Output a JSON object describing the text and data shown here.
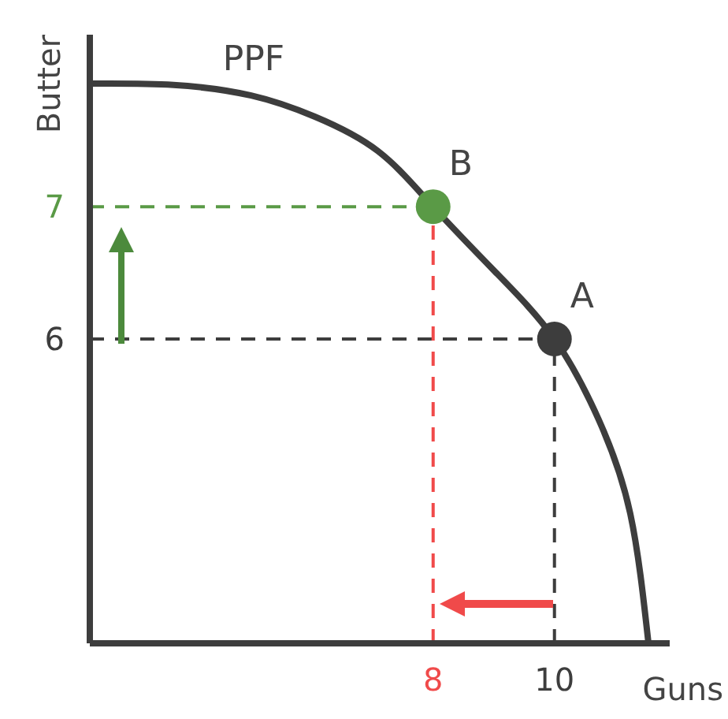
{
  "chart_data": {
    "type": "line",
    "xlabel": "Guns",
    "ylabel": "Butter",
    "xlim": [
      2.34,
      11.9
    ],
    "ylim": [
      3.7,
      8.3
    ],
    "xticks": [
      8,
      10
    ],
    "yticks": [
      6,
      7
    ],
    "grid": false,
    "legend": false,
    "series": [
      {
        "name": "PPF",
        "color": "#3d3d3d",
        "marker": "none",
        "x": [
          2.34,
          3.72,
          5.0,
          6.05,
          7.09,
          8,
          9.04,
          10,
          10.73,
          11.25,
          11.55
        ],
        "values": [
          7.93,
          7.92,
          7.84,
          7.68,
          7.42,
          7,
          6.5,
          6,
          5.39,
          4.68,
          3.7
        ]
      },
      {
        "name": "B",
        "type": "scatter",
        "color": "#5a9a46",
        "marker": "circle",
        "x": [
          8
        ],
        "values": [
          7
        ]
      },
      {
        "name": "A",
        "type": "scatter",
        "color": "#3d3d3d",
        "marker": "circle",
        "x": [
          10
        ],
        "values": [
          6
        ]
      }
    ],
    "ref_lines": [
      {
        "axis": "y",
        "value": 7,
        "color": "#5a9a46",
        "line_style": "dashed"
      },
      {
        "axis": "y",
        "value": 6,
        "color": "#3d3d3d",
        "line_style": "dashed"
      },
      {
        "axis": "x",
        "value": 8,
        "color": "#f04a4a",
        "line_style": "dashed"
      },
      {
        "axis": "x",
        "value": 10,
        "color": "#3d3d3d",
        "line_style": "dashed"
      }
    ]
  }
}
